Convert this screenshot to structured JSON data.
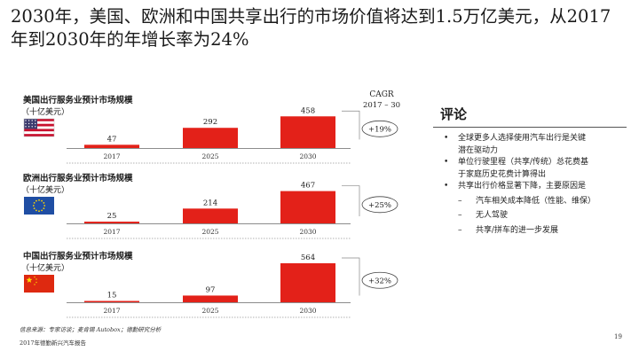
{
  "title": {
    "line1": "2030年，美国、欧洲和中国共享出行的市场价值将达到1.5万亿美元，从2017",
    "line2": "年到2030年的年增长率为24%"
  },
  "cagr_header": {
    "line1": "CAGR",
    "line2": "2017 – 30"
  },
  "chart_data": [
    {
      "type": "bar",
      "title": "美国出行服务业预计市场规模",
      "unit": "（十亿美元）",
      "region": "United States",
      "categories": [
        "2017",
        "2025",
        "2030"
      ],
      "values": [
        47,
        292,
        458
      ],
      "cagr": "+19%",
      "color": "#e32119"
    },
    {
      "type": "bar",
      "title": "欧洲出行服务业预计市场规模",
      "unit": "（十亿美元）",
      "region": "Europe",
      "categories": [
        "2017",
        "2025",
        "2030"
      ],
      "values": [
        25,
        214,
        467
      ],
      "cagr": "+25%",
      "color": "#e32119"
    },
    {
      "type": "bar",
      "title": "中国出行服务业预计市场规模",
      "unit": "（十亿美元）",
      "region": "China",
      "categories": [
        "2017",
        "2025",
        "2030"
      ],
      "values": [
        15,
        97,
        564
      ],
      "cagr": "+32%",
      "color": "#e32119"
    }
  ],
  "commentary": {
    "title": "评论",
    "bullets": [
      {
        "marker": "•",
        "lines": [
          "全球更多人选择使用汽车出行是关键",
          "潜在驱动力"
        ]
      },
      {
        "marker": "•",
        "lines": [
          "单位行驶里程（共享/传统）总花费基",
          "于家庭历史花费计算得出"
        ]
      },
      {
        "marker": "•",
        "lines": [
          "共享出行价格显著下降，主要原因是"
        ]
      }
    ],
    "sub_bullets": [
      {
        "marker": "–",
        "text": "汽车相关成本降低（性能、维保）"
      },
      {
        "marker": "–",
        "text": "无人驾驶"
      },
      {
        "marker": "–",
        "text": "共享/拼车的进一步发展"
      }
    ]
  },
  "footer": {
    "source": "信息来源：专家访谈；麦肯锡 Autobox；德勤研究分析",
    "report": "2017年德勤新兴汽车报告",
    "page": "19"
  },
  "colors": {
    "bar": "#e32119",
    "axis": "#666666",
    "text": "#222222"
  }
}
